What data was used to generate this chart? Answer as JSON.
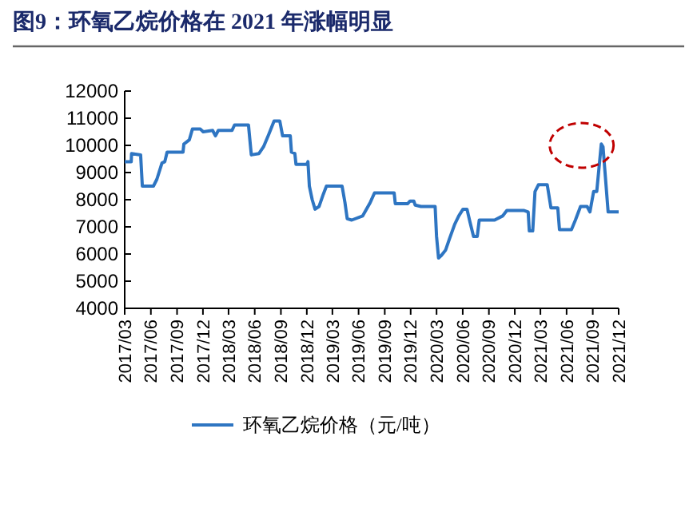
{
  "chart_data": {
    "type": "line",
    "title": "图9：环氧乙烷价格在 2021 年涨幅明显",
    "legend": "bottom",
    "xlim": [
      "2017-03-01",
      "2021-12-01"
    ],
    "xticks": [
      {
        "value": "2017-03",
        "label": "2017/03"
      },
      {
        "value": "2017-06",
        "label": "2017/06"
      },
      {
        "value": "2017-09",
        "label": "2017/09"
      },
      {
        "value": "2017-12",
        "label": "2017/12"
      },
      {
        "value": "2018-03",
        "label": "2018/03"
      },
      {
        "value": "2018-06",
        "label": "2018/06"
      },
      {
        "value": "2018-09",
        "label": "2018/09"
      },
      {
        "value": "2018-12",
        "label": "2018/12"
      },
      {
        "value": "2019-03",
        "label": "2019/03"
      },
      {
        "value": "2019-06",
        "label": "2019/06"
      },
      {
        "value": "2019-09",
        "label": "2019/09"
      },
      {
        "value": "2019-12",
        "label": "2019/12"
      },
      {
        "value": "2020-03",
        "label": "2020/03"
      },
      {
        "value": "2020-06",
        "label": "2020/06"
      },
      {
        "value": "2020-09",
        "label": "2020/09"
      },
      {
        "value": "2020-12",
        "label": "2020/12"
      },
      {
        "value": "2021-03",
        "label": "2021/03"
      },
      {
        "value": "2021-06",
        "label": "2021/06"
      },
      {
        "value": "2021-09",
        "label": "2021/09"
      },
      {
        "value": "2021-12",
        "label": "2021/12"
      }
    ],
    "ylim": [
      4000,
      12000
    ],
    "yticks": [
      4000,
      5000,
      6000,
      7000,
      8000,
      9000,
      10000,
      11000,
      12000
    ],
    "x": [
      "2017-03-01",
      "2017-03-24",
      "2017-03-25",
      "2017-04-26",
      "2017-05-02",
      "2017-06-10",
      "2017-06-22",
      "2017-07-10",
      "2017-07-20",
      "2017-07-28",
      "2017-09-22",
      "2017-09-25",
      "2017-10-14",
      "2017-10-25",
      "2017-11-22",
      "2017-12-02",
      "2018-01-04",
      "2018-01-14",
      "2018-01-24",
      "2018-03-13",
      "2018-03-22",
      "2018-05-10",
      "2018-05-20",
      "2018-06-16",
      "2018-07-02",
      "2018-07-20",
      "2018-08-08",
      "2018-08-28",
      "2018-09-07",
      "2018-10-04",
      "2018-10-08",
      "2018-10-20",
      "2018-10-24",
      "2018-12-01",
      "2018-12-05",
      "2018-12-10",
      "2018-12-20",
      "2018-12-30",
      "2019-01-13",
      "2019-01-28",
      "2019-02-08",
      "2019-04-04",
      "2019-04-14",
      "2019-04-22",
      "2019-05-08",
      "2019-06-15",
      "2019-07-12",
      "2019-07-27",
      "2019-10-04",
      "2019-10-08",
      "2019-11-20",
      "2019-11-29",
      "2019-12-12",
      "2019-12-17",
      "2020-01-06",
      "2020-02-25",
      "2020-03-01",
      "2020-03-08",
      "2020-03-18",
      "2020-04-02",
      "2020-04-15",
      "2020-05-04",
      "2020-05-18",
      "2020-06-02",
      "2020-06-16",
      "2020-06-26",
      "2020-07-09",
      "2020-07-22",
      "2020-07-29",
      "2020-09-21",
      "2020-10-19",
      "2020-11-03",
      "2021-01-03",
      "2021-01-17",
      "2021-01-21",
      "2021-02-02",
      "2021-02-10",
      "2021-02-22",
      "2021-03-25",
      "2021-04-07",
      "2021-05-01",
      "2021-05-07",
      "2021-06-18",
      "2021-07-02",
      "2021-07-20",
      "2021-08-12",
      "2021-08-22",
      "2021-09-04",
      "2021-09-15",
      "2021-10-01",
      "2021-10-07",
      "2021-10-25",
      "2021-12-01"
    ],
    "series": [
      {
        "name": "环氧乙烷价格（元/吨）",
        "color": "#2e75c2",
        "values": [
          9400,
          9400,
          9700,
          9650,
          8500,
          8500,
          8750,
          9350,
          9400,
          9750,
          9750,
          10050,
          10200,
          10600,
          10600,
          10500,
          10550,
          10350,
          10550,
          10550,
          10750,
          10750,
          9650,
          9700,
          9950,
          10400,
          10900,
          10900,
          10350,
          10350,
          9750,
          9700,
          9300,
          9300,
          9400,
          8500,
          8000,
          7650,
          7750,
          8200,
          8500,
          8500,
          7900,
          7300,
          7250,
          7400,
          7900,
          8250,
          8250,
          7850,
          7850,
          7950,
          7950,
          7800,
          7750,
          7750,
          6650,
          5850,
          5950,
          6150,
          6550,
          7100,
          7400,
          7650,
          7650,
          7200,
          6650,
          6650,
          7250,
          7250,
          7400,
          7600,
          7600,
          7550,
          6850,
          6850,
          8300,
          8550,
          8550,
          7700,
          7700,
          6900,
          6900,
          7250,
          7750,
          7750,
          7550,
          8300,
          8300,
          10050,
          9950,
          7550,
          7550
        ]
      }
    ]
  }
}
